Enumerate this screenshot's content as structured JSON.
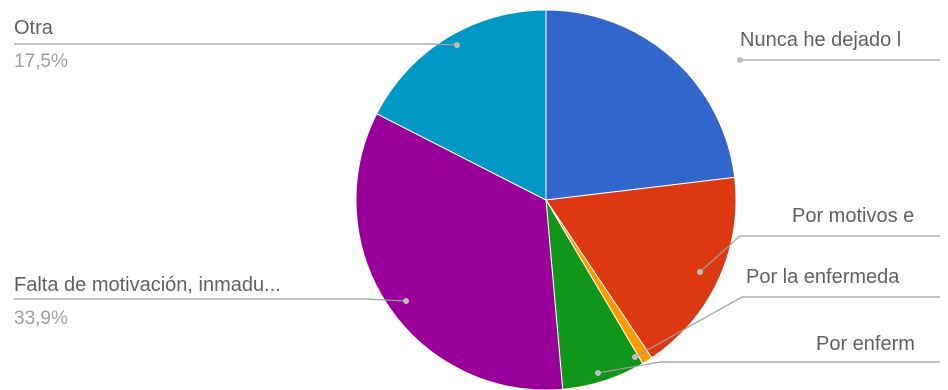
{
  "chart_data": {
    "type": "pie",
    "slices": [
      {
        "label": "Nunca he dejado l",
        "percent": 23.1,
        "color": "#3366cc"
      },
      {
        "label": "Por motivos e",
        "percent": 17.5,
        "color": "#dc3912"
      },
      {
        "label": "Por la enfermeda",
        "percent": 0.9,
        "color": "#ff9900"
      },
      {
        "label": "Por enferm",
        "percent": 7.1,
        "color": "#109618"
      },
      {
        "label": "Falta de motivación, inmadu...",
        "percent": 33.9,
        "percent_label": "33,9%",
        "color": "#990099"
      },
      {
        "label": "Otra",
        "percent": 17.5,
        "percent_label": "17,5%",
        "color": "#0099c6"
      }
    ],
    "start_angle_deg": 0,
    "direction": "clockwise",
    "legend": "none"
  }
}
